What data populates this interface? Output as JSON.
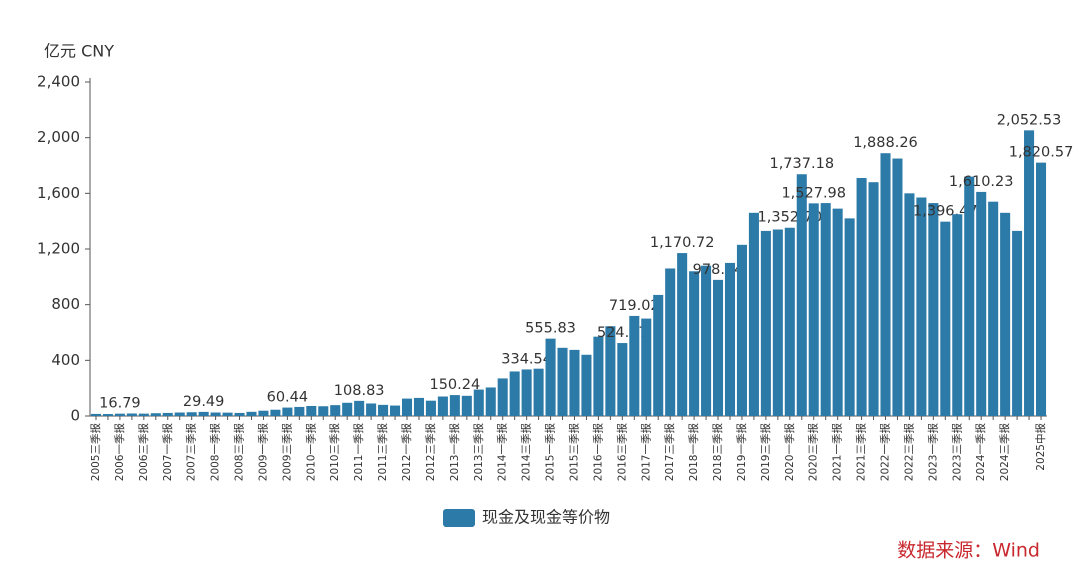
{
  "chart_data": {
    "type": "bar",
    "unit": "亿元  CNY",
    "source": "数据来源：Wind",
    "color": "#2b7aa8",
    "series": [
      {
        "name": "现金及现金等价物",
        "color": "#2b7aa8",
        "values": [
          15,
          14,
          16.79,
          18,
          17,
          20,
          22,
          25,
          27,
          29.49,
          25,
          24,
          22,
          30,
          38,
          45,
          60.44,
          65,
          72,
          70,
          78,
          95,
          108.83,
          90,
          80,
          75,
          125,
          130,
          110,
          140,
          150.24,
          145,
          190,
          205,
          270,
          320,
          334.54,
          340,
          555.83,
          490,
          475,
          440,
          570,
          645,
          524.17,
          719.02,
          700,
          870,
          1060,
          1170.72,
          1040,
          1080,
          978.14,
          1100,
          1230,
          1460,
          1330,
          1340,
          1352.7,
          1737.18,
          1527.98,
          1530,
          1490,
          1420,
          1710,
          1680,
          1888.26,
          1850,
          1600,
          1570,
          1530,
          1396.47,
          1450,
          1720,
          1610.23,
          1540,
          1460,
          1330,
          2052.53,
          1820.57
        ],
        "value_labels": [
          null,
          null,
          "16.79",
          null,
          null,
          null,
          null,
          null,
          null,
          "29.49",
          null,
          null,
          null,
          null,
          null,
          null,
          "60.44",
          null,
          null,
          null,
          null,
          null,
          "108.83",
          null,
          null,
          null,
          null,
          null,
          null,
          null,
          "150.24",
          null,
          null,
          null,
          null,
          null,
          "334.54",
          null,
          "555.83",
          null,
          null,
          null,
          null,
          null,
          "524.17",
          "719.02",
          null,
          null,
          null,
          "1,170.72",
          null,
          null,
          "978.14",
          null,
          null,
          null,
          null,
          null,
          "1,352.70",
          "1,737.18",
          "1,527.98",
          null,
          null,
          null,
          null,
          null,
          "1,888.26",
          null,
          null,
          null,
          null,
          "1,396.47",
          null,
          null,
          "1,610.23",
          null,
          null,
          null,
          "2,052.53",
          "1,820.57"
        ]
      }
    ],
    "categories": [
      "2005三季报",
      null,
      "2006一季报",
      null,
      "2006三季报",
      null,
      "2007一季报",
      null,
      "2007三季报",
      null,
      "2008一季报",
      null,
      "2008三季报",
      null,
      "2009一季报",
      null,
      "2009三季报",
      null,
      "2010一季报",
      null,
      "2010三季报",
      null,
      "2011一季报",
      null,
      "2011三季报",
      null,
      "2012一季报",
      null,
      "2012三季报",
      null,
      "2013一季报",
      null,
      "2013三季报",
      null,
      "2014一季报",
      null,
      "2014三季报",
      null,
      "2015一季报",
      null,
      "2015三季报",
      null,
      "2016一季报",
      null,
      "2016三季报",
      null,
      "2017一季报",
      null,
      "2017三季报",
      null,
      "2018一季报",
      null,
      "2018三季报",
      null,
      "2019一季报",
      null,
      "2019三季报",
      null,
      "2020一季报",
      null,
      "2020三季报",
      null,
      "2021一季报",
      null,
      "2021三季报",
      null,
      "2022一季报",
      null,
      "2022三季报",
      null,
      "2023一季报",
      null,
      "2023三季报",
      null,
      "2024一季报",
      null,
      "2024三季报",
      null,
      null,
      "2025中报"
    ],
    "ylim": [
      0,
      2400
    ],
    "yticks": [
      0,
      400,
      800,
      {
        "value": 1200,
        "label": "1,200"
      },
      {
        "value": 1600,
        "label": "1,600"
      },
      {
        "value": 2000,
        "label": "2,000"
      },
      {
        "value": 2400,
        "label": "2,400"
      }
    ],
    "grid": false
  }
}
